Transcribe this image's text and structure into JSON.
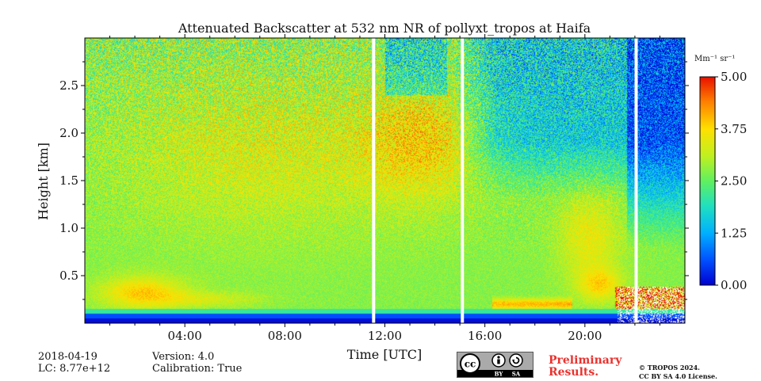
{
  "chart_data": {
    "type": "heatmap",
    "title": "Attenuated Backscatter at 532 nm NR of pollyxt_tropos at Haifa",
    "xlabel": "Time [UTC]",
    "ylabel": "Height [km]",
    "xlim": [
      0,
      24
    ],
    "ylim": [
      0,
      3.0
    ],
    "x_ticks": [
      4,
      8,
      12,
      16,
      20
    ],
    "x_tick_labels": [
      "04:00",
      "08:00",
      "12:00",
      "16:00",
      "20:00"
    ],
    "y_ticks": [
      0.5,
      1.0,
      1.5,
      2.0,
      2.5
    ],
    "y_tick_labels": [
      "0.5",
      "1.0",
      "1.5",
      "2.0",
      "2.5"
    ],
    "colorbar": {
      "label": "Mm⁻¹ sr⁻¹",
      "min": 0.0,
      "max": 5.0,
      "ticks": [
        0.0,
        1.25,
        2.5,
        3.75,
        5.0
      ],
      "tick_labels": [
        "0.00",
        "1.25",
        "2.50",
        "3.75",
        "5.00"
      ],
      "colormap": "jet",
      "colors": [
        "#0000d0",
        "#0050ff",
        "#00b0ff",
        "#20e0c0",
        "#60f060",
        "#c0f020",
        "#ffe000",
        "#ff8000",
        "#e81000"
      ]
    },
    "data_gaps_hours": [
      11.55,
      15.1,
      22.05
    ]
  },
  "footer": {
    "date": "2018-04-19",
    "lc": "LC: 8.77e+12",
    "version": "Version: 4.0",
    "calibration": "Calibration: True",
    "license_badge": {
      "cc": "cc",
      "by": "BY",
      "sa": "SA"
    },
    "preliminary_line1": "Preliminary",
    "preliminary_line2": "Results.",
    "copyright_line1": "© TROPOS 2024.",
    "copyright_line2": "CC BY SA 4.0 License."
  }
}
